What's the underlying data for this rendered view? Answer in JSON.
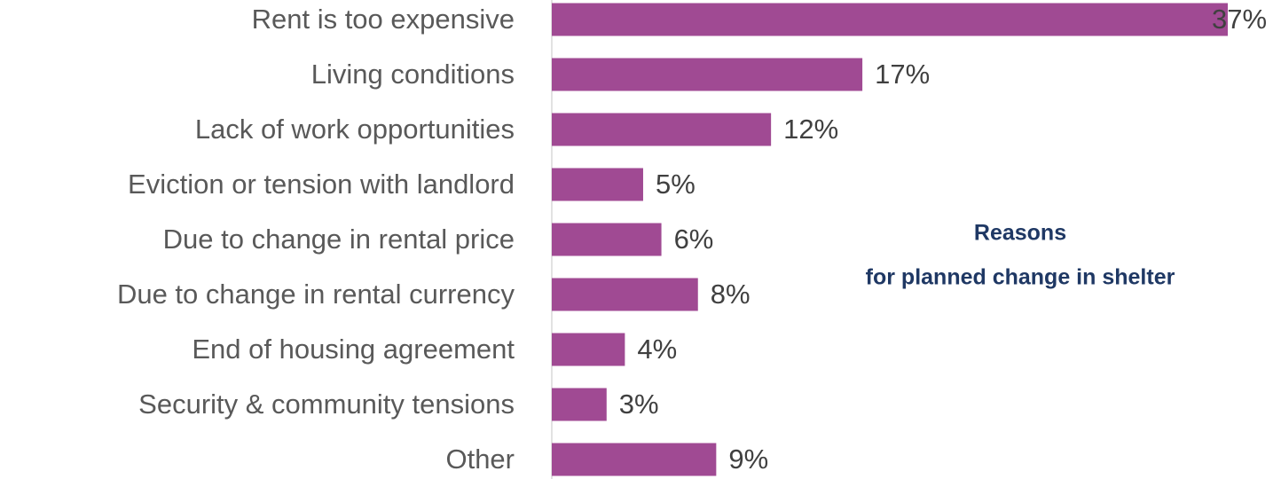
{
  "chart_data": {
    "type": "bar",
    "orientation": "horizontal",
    "title": [
      "Reasons",
      "for planned change in shelter"
    ],
    "categories": [
      "Rent is too expensive",
      "Living conditions",
      "Lack of work opportunities",
      "Eviction or tension with landlord",
      "Due to change in rental price",
      "Due to change in rental currency",
      "End of housing agreement",
      "Security & community tensions",
      "Other"
    ],
    "values": [
      37,
      17,
      12,
      5,
      6,
      8,
      4,
      3,
      9
    ],
    "value_labels": [
      "37%",
      "17%",
      "12%",
      "5%",
      "6%",
      "8%",
      "4%",
      "3%",
      "9%"
    ],
    "color": "#a04a93"
  }
}
